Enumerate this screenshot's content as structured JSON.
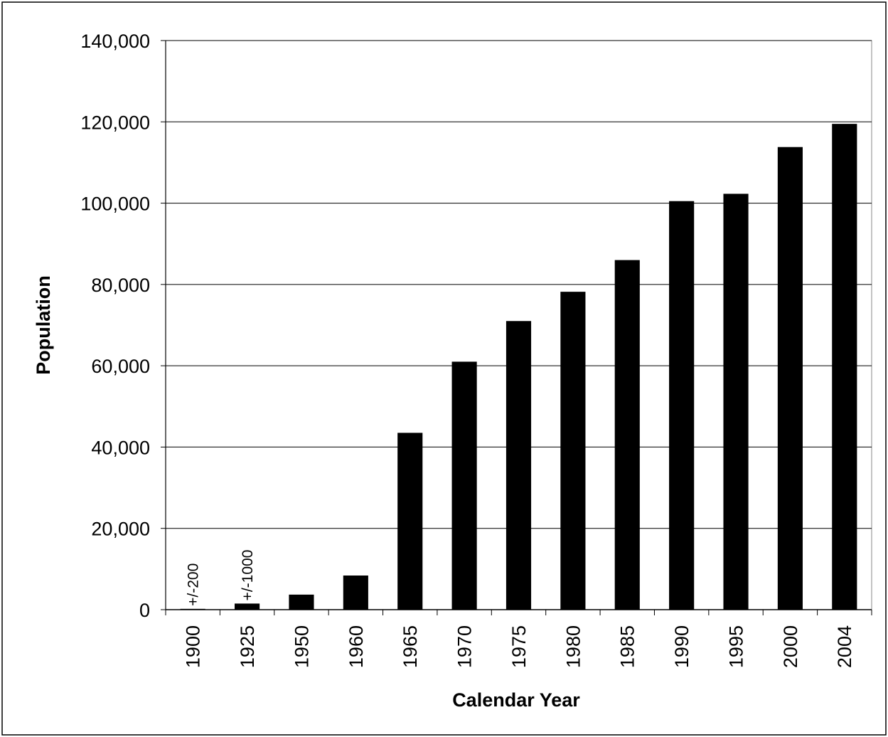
{
  "chart_data": {
    "type": "bar",
    "title": "",
    "xlabel": "Calendar Year",
    "ylabel": "Population",
    "categories": [
      "1900",
      "1925",
      "1950",
      "1960",
      "1965",
      "1970",
      "1975",
      "1980",
      "1985",
      "1990",
      "1995",
      "2000",
      "2004"
    ],
    "values": [
      200,
      1500,
      3700,
      8400,
      43500,
      61000,
      71000,
      78200,
      86000,
      100500,
      102300,
      113800,
      119500
    ],
    "ylim": [
      0,
      140000
    ],
    "yticks": [
      0,
      20000,
      40000,
      60000,
      80000,
      100000,
      120000,
      140000
    ],
    "ytick_labels": [
      "0",
      "20,000",
      "40,000",
      "60,000",
      "80,000",
      "100,000",
      "120,000",
      "140,000"
    ],
    "annotations": [
      {
        "category": "1900",
        "text": "+/-200"
      },
      {
        "category": "1925",
        "text": "+/-1000"
      }
    ],
    "grid": true,
    "legend": "none",
    "bar_color": "#000000"
  }
}
